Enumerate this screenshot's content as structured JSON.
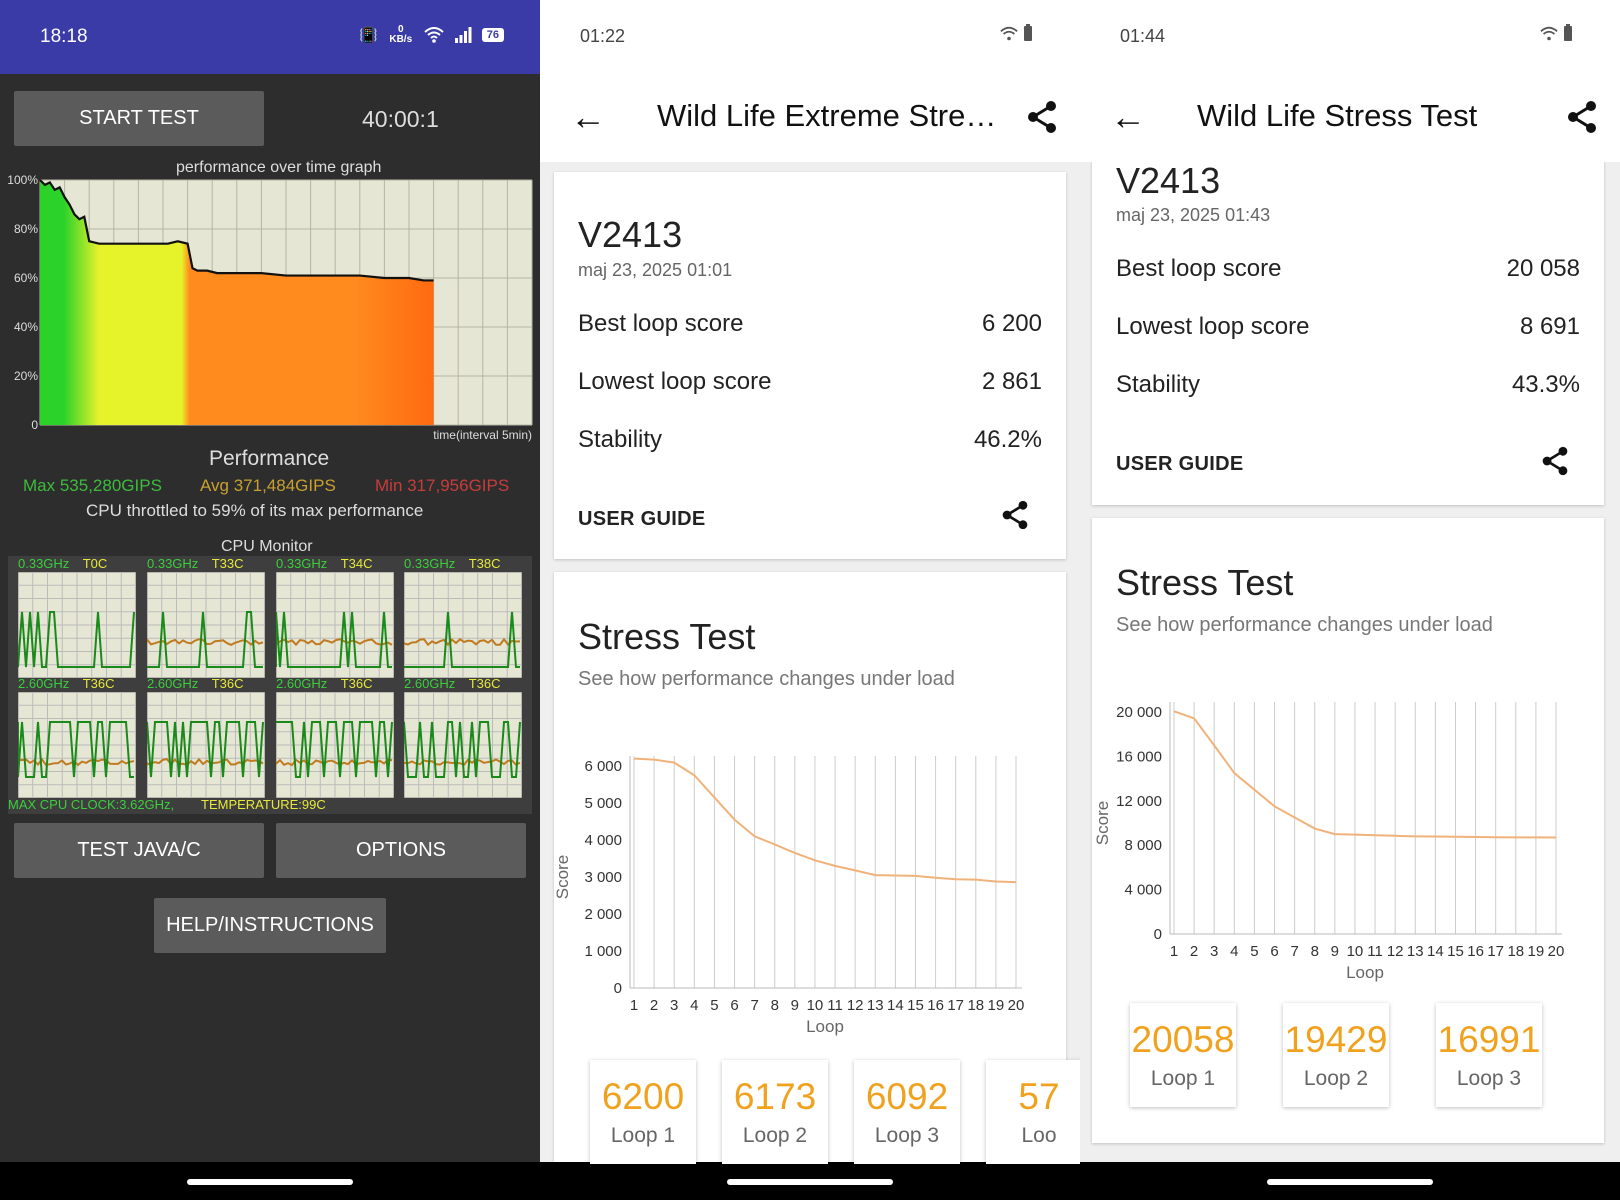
{
  "p1": {
    "status_time": "18:18",
    "speed": "0 KB/s",
    "battery": "76",
    "start_button": "START TEST",
    "timer": "40:00:1",
    "graph_title": "performance over time graph",
    "y_ticks": [
      "100%",
      "80%",
      "60%",
      "40%",
      "20%",
      "0"
    ],
    "x_caption": "time(interval 5min)",
    "perf_label": "Performance",
    "max": "Max 535,280GIPS",
    "avg": "Avg 371,484GIPS",
    "min": "Min 317,956GIPS",
    "throttle": "CPU throttled to 59% of its max performance",
    "cpu_monitor": "CPU Monitor",
    "cores_top": [
      {
        "freq": "0.33GHz",
        "temp": "T0C"
      },
      {
        "freq": "0.33GHz",
        "temp": "T33C"
      },
      {
        "freq": "0.33GHz",
        "temp": "T34C"
      },
      {
        "freq": "0.33GHz",
        "temp": "T38C"
      }
    ],
    "cores_bottom": [
      {
        "freq": "2.60GHz",
        "temp": "T36C"
      },
      {
        "freq": "2.60GHz",
        "temp": "T36C"
      },
      {
        "freq": "2.60GHz",
        "temp": "T36C"
      },
      {
        "freq": "2.60GHz",
        "temp": "T36C"
      }
    ],
    "max_clock": "MAX CPU CLOCK:3.62GHz,",
    "max_temp": "TEMPERATURE:99C",
    "test_java": "TEST JAVA/C",
    "options": "OPTIONS",
    "help": "HELP/INSTRUCTIONS"
  },
  "p2": {
    "status_time": "01:22",
    "title": "Wild Life Extreme Stres...",
    "device": "V2413",
    "date": "maj 23, 2025 01:01",
    "best_label": "Best loop score",
    "best": "6 200",
    "lowest_label": "Lowest loop score",
    "lowest": "2 861",
    "stability_label": "Stability",
    "stability": "46.2%",
    "user_guide": "USER GUIDE",
    "stress_title": "Stress Test",
    "stress_sub": "See how performance changes under load",
    "y_label": "Score",
    "x_label": "Loop",
    "loops": [
      {
        "score": "6200",
        "label": "Loop 1"
      },
      {
        "score": "6173",
        "label": "Loop 2"
      },
      {
        "score": "6092",
        "label": "Loop 3"
      },
      {
        "score": "57",
        "label": "Loo"
      }
    ]
  },
  "p3": {
    "status_time": "01:44",
    "title": "Wild Life Stress Test",
    "device": "V2413",
    "date": "maj 23, 2025 01:43",
    "best_label": "Best loop score",
    "best": "20 058",
    "lowest_label": "Lowest loop score",
    "lowest": "8 691",
    "stability_label": "Stability",
    "stability": "43.3%",
    "user_guide": "USER GUIDE",
    "stress_title": "Stress Test",
    "stress_sub": "See how performance changes under load",
    "y_label": "Score",
    "x_label": "Loop",
    "loops": [
      {
        "score": "20058",
        "label": "Loop 1"
      },
      {
        "score": "19429",
        "label": "Loop 2"
      },
      {
        "score": "16991",
        "label": "Loop 3"
      }
    ]
  },
  "chart_data": [
    {
      "type": "area",
      "title": "performance over time graph",
      "xlabel": "time(interval 5min)",
      "ylabel": "",
      "ylim": [
        0,
        100
      ],
      "y_ticks": [
        "0",
        "20%",
        "40%",
        "60%",
        "80%",
        "100%"
      ],
      "y_unit": "% of max performance",
      "x": [
        0,
        0.1,
        0.2,
        0.3,
        0.4,
        0.5,
        0.6,
        0.7,
        0.8,
        0.9,
        1.0,
        1.2,
        1.4,
        1.6,
        1.8,
        2.0,
        2.2,
        2.4,
        2.6,
        2.8,
        3.0,
        3.1,
        3.2,
        3.4,
        3.6,
        3.8,
        4.0,
        4.5,
        5.0,
        5.5,
        6.0,
        6.5,
        7.0,
        7.5,
        7.8,
        8.0
      ],
      "values": [
        100,
        98,
        99,
        96,
        97,
        93,
        90,
        86,
        84,
        85,
        75,
        74,
        74,
        74,
        74,
        74,
        74,
        74,
        74,
        75,
        74,
        64,
        63,
        63,
        62,
        62,
        62,
        62,
        61,
        61,
        61,
        61,
        60,
        60,
        59,
        59
      ],
      "color_bands": [
        "#2ad22a",
        "#e6f22a",
        "#ff8a1e",
        "#ff6a10"
      ],
      "grid": true
    },
    {
      "type": "line",
      "title": "Stress Test",
      "xlabel": "Loop",
      "ylabel": "Score",
      "x": [
        1,
        2,
        3,
        4,
        5,
        6,
        7,
        8,
        9,
        10,
        11,
        12,
        13,
        14,
        15,
        16,
        17,
        18,
        19,
        20
      ],
      "values": [
        6200,
        6173,
        6092,
        5750,
        5150,
        4550,
        4100,
        3880,
        3650,
        3450,
        3300,
        3180,
        3050,
        3040,
        3030,
        2980,
        2940,
        2930,
        2880,
        2861
      ],
      "ylim": [
        0,
        6000
      ],
      "y_ticks": [
        "0",
        "1 000",
        "2 000",
        "3 000",
        "4 000",
        "5 000",
        "6 000"
      ],
      "color": "#f0b27a",
      "grid": true
    },
    {
      "type": "line",
      "title": "Stress Test",
      "xlabel": "Loop",
      "ylabel": "Score",
      "x": [
        1,
        2,
        3,
        4,
        5,
        6,
        7,
        8,
        9,
        10,
        11,
        12,
        13,
        14,
        15,
        16,
        17,
        18,
        19,
        20
      ],
      "values": [
        20058,
        19429,
        16991,
        14500,
        13000,
        11500,
        10500,
        9500,
        9000,
        8950,
        8900,
        8850,
        8800,
        8780,
        8760,
        8740,
        8720,
        8710,
        8700,
        8691
      ],
      "ylim": [
        0,
        20000
      ],
      "y_ticks": [
        "0",
        "4 000",
        "8 000",
        "12 000",
        "16 000",
        "20 000"
      ],
      "color": "#f0b27a",
      "grid": true
    }
  ]
}
